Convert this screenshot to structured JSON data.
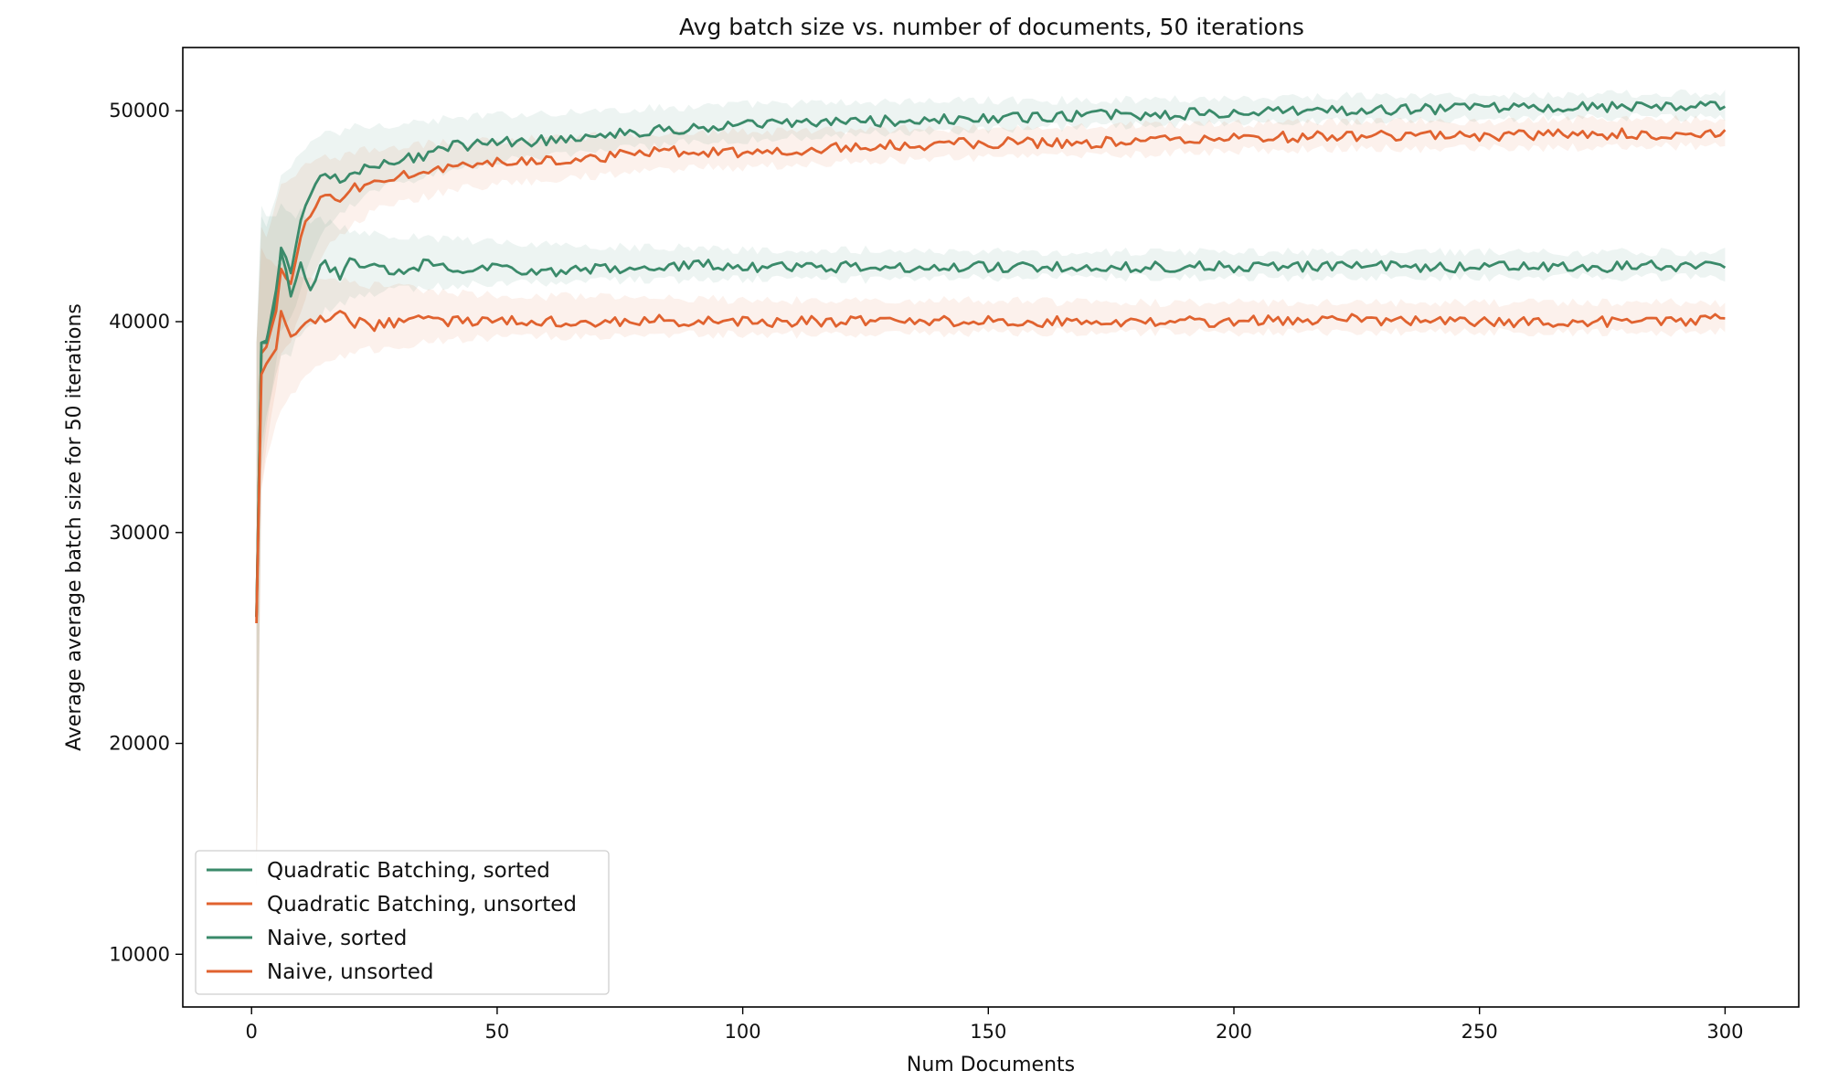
{
  "chart_data": {
    "type": "line",
    "title": "Avg batch size vs. number of documents, 50 iterations",
    "xlabel": "Num Documents",
    "ylabel": "Average average batch size for 50 iterations",
    "xlim": [
      -14,
      315
    ],
    "ylim": [
      7500,
      53000
    ],
    "xticks": [
      0,
      50,
      100,
      150,
      200,
      250,
      300
    ],
    "yticks": [
      10000,
      20000,
      30000,
      40000,
      50000
    ],
    "grid": false,
    "legend_position": "lower-left",
    "series": [
      {
        "name": "Quadratic Batching, sorted",
        "color": "#3a8a6a",
        "x": [
          1,
          2,
          3,
          5,
          6,
          8,
          10,
          12,
          15,
          18,
          20,
          25,
          30,
          35,
          40,
          50,
          60,
          70,
          80,
          90,
          100,
          125,
          150,
          175,
          200,
          225,
          250,
          275,
          300
        ],
        "y": [
          26000,
          39000,
          39100,
          41000,
          43500,
          42300,
          44800,
          46000,
          47000,
          46600,
          47000,
          47500,
          47600,
          47900,
          48300,
          48500,
          48600,
          48900,
          49000,
          49200,
          49300,
          49500,
          49600,
          49800,
          49900,
          50000,
          50100,
          50200,
          50200
        ],
        "low": [
          13000,
          33000,
          35000,
          38000,
          39500,
          40000,
          41500,
          43000,
          44500,
          45000,
          45500,
          46200,
          46500,
          46800,
          47200,
          47600,
          47800,
          48100,
          48300,
          48500,
          48600,
          48900,
          49100,
          49300,
          49400,
          49500,
          49600,
          49700,
          49700
        ],
        "high": [
          39000,
          45000,
          44500,
          46000,
          47000,
          47500,
          48000,
          48500,
          49000,
          49000,
          49200,
          49300,
          49400,
          49500,
          49600,
          49800,
          49900,
          50000,
          50100,
          50200,
          50300,
          50400,
          50500,
          50500,
          50600,
          50700,
          50700,
          50800,
          50800
        ]
      },
      {
        "name": "Quadratic Batching, unsorted",
        "color": "#e0622f",
        "x": [
          1,
          2,
          3,
          5,
          6,
          8,
          10,
          12,
          15,
          18,
          20,
          25,
          30,
          35,
          40,
          50,
          60,
          70,
          80,
          90,
          100,
          125,
          150,
          175,
          200,
          225,
          250,
          275,
          300
        ],
        "y": [
          26000,
          38500,
          38800,
          40500,
          42500,
          41800,
          44000,
          45000,
          46000,
          45700,
          46200,
          46700,
          46900,
          47100,
          47300,
          47500,
          47600,
          47800,
          48000,
          48100,
          48000,
          48300,
          48500,
          48500,
          48700,
          48800,
          48800,
          48900,
          48900
        ],
        "low": [
          13000,
          32000,
          34000,
          37000,
          38500,
          39000,
          40500,
          42000,
          43500,
          44000,
          44500,
          45300,
          45600,
          45900,
          46200,
          46500,
          46700,
          46900,
          47100,
          47300,
          47300,
          47600,
          47800,
          47900,
          48100,
          48200,
          48200,
          48300,
          48300
        ],
        "high": [
          39000,
          44500,
          44000,
          45500,
          46500,
          46800,
          47200,
          47500,
          47800,
          47800,
          48000,
          48200,
          48300,
          48400,
          48500,
          48600,
          48700,
          48800,
          48900,
          49000,
          49000,
          49100,
          49200,
          49300,
          49400,
          49500,
          49500,
          49600,
          49600
        ]
      },
      {
        "name": "Naive, sorted",
        "color": "#3a8a6a",
        "x": [
          1,
          2,
          3,
          5,
          6,
          8,
          10,
          12,
          15,
          18,
          20,
          25,
          30,
          35,
          40,
          50,
          60,
          70,
          80,
          90,
          100,
          125,
          150,
          175,
          200,
          225,
          250,
          275,
          300
        ],
        "y": [
          26000,
          39000,
          39000,
          41500,
          43300,
          41200,
          42800,
          41500,
          42900,
          42000,
          43000,
          42600,
          42400,
          42700,
          42500,
          42600,
          42300,
          42500,
          42600,
          42700,
          42600,
          42600,
          42600,
          42600,
          42600,
          42600,
          42600,
          42600,
          42700
        ],
        "low": [
          13000,
          34000,
          35500,
          37500,
          38500,
          38500,
          39500,
          39800,
          40500,
          40800,
          41000,
          41300,
          41500,
          41600,
          41700,
          41800,
          41800,
          41900,
          42000,
          42000,
          42000,
          42000,
          42100,
          42100,
          42100,
          42100,
          42100,
          42100,
          42100
        ],
        "high": [
          39000,
          45500,
          45000,
          45000,
          45500,
          45000,
          45200,
          44700,
          44800,
          44500,
          44400,
          44200,
          44100,
          44000,
          43900,
          43800,
          43700,
          43600,
          43500,
          43500,
          43400,
          43400,
          43300,
          43300,
          43300,
          43300,
          43300,
          43300,
          43300
        ]
      },
      {
        "name": "Naive, unsorted",
        "color": "#e0622f",
        "x": [
          1,
          2,
          3,
          5,
          6,
          8,
          10,
          12,
          15,
          18,
          20,
          25,
          30,
          35,
          40,
          50,
          60,
          70,
          80,
          90,
          100,
          125,
          150,
          175,
          200,
          225,
          250,
          275,
          300
        ],
        "y": [
          25700,
          37500,
          38000,
          38700,
          40500,
          39300,
          39700,
          40100,
          40000,
          40500,
          40000,
          39800,
          40000,
          40200,
          40000,
          40100,
          40000,
          39900,
          40100,
          40000,
          40000,
          40000,
          40000,
          40000,
          40000,
          40100,
          40000,
          40000,
          40100
        ],
        "low": [
          13000,
          32000,
          33500,
          35000,
          36000,
          36500,
          37000,
          37500,
          38000,
          38300,
          38500,
          38700,
          38900,
          39000,
          39100,
          39200,
          39300,
          39300,
          39400,
          39400,
          39400,
          39400,
          39500,
          39500,
          39500,
          39500,
          39500,
          39500,
          39500
        ],
        "high": [
          39000,
          43500,
          43000,
          42800,
          42600,
          42400,
          42300,
          42200,
          42100,
          42000,
          41900,
          41700,
          41600,
          41500,
          41400,
          41300,
          41200,
          41200,
          41100,
          41100,
          41000,
          41000,
          41000,
          40900,
          40900,
          40900,
          40900,
          40900,
          40900
        ]
      }
    ]
  }
}
